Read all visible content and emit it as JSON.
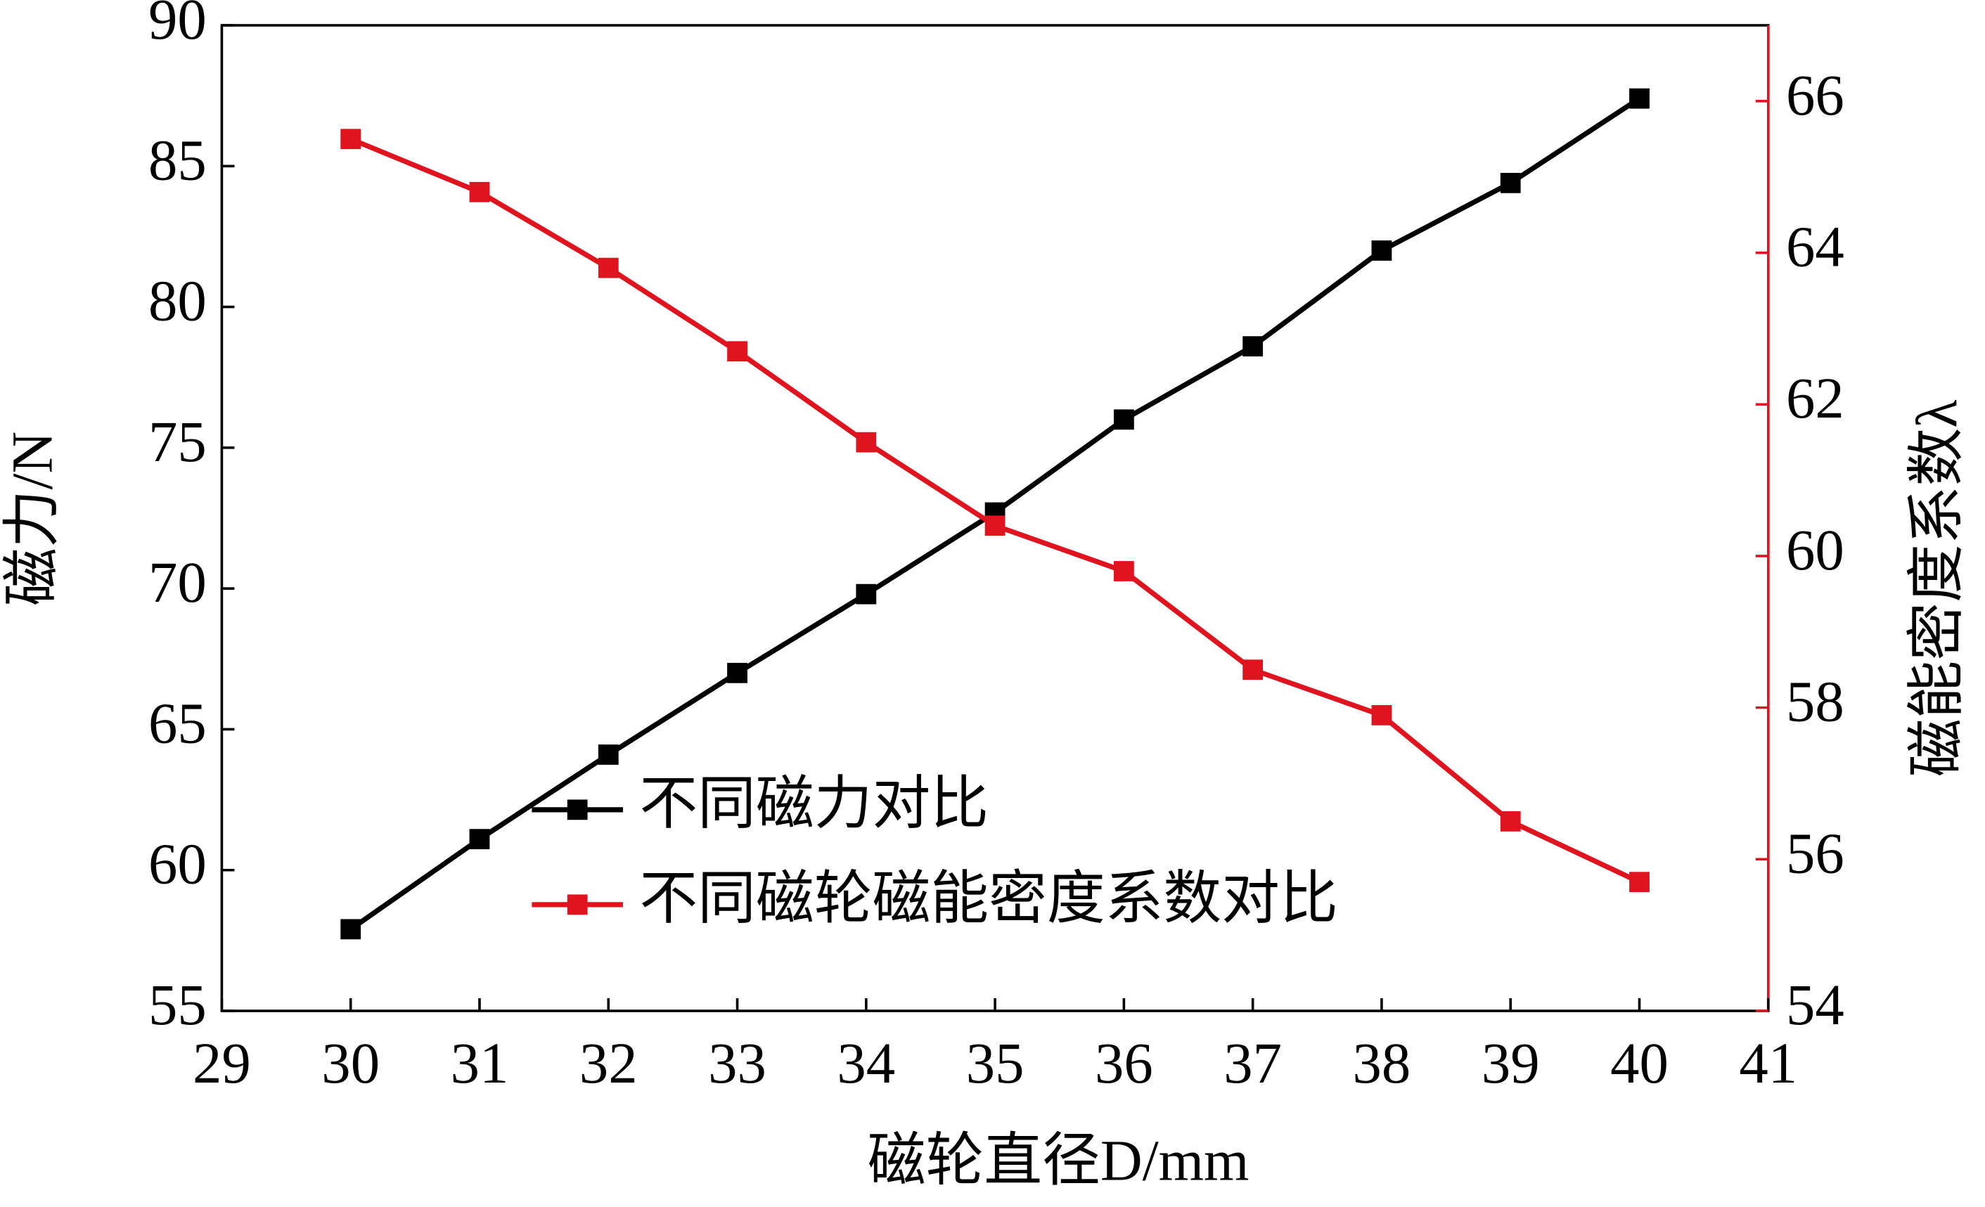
{
  "chart_data": {
    "type": "line",
    "xlabel": "磁轮直径D/mm",
    "ylabel": "磁力/N",
    "y2label": "磁能密度系数λ",
    "x": [
      30,
      31,
      32,
      33,
      34,
      35,
      36,
      37,
      38,
      39,
      40
    ],
    "xlim": [
      29,
      41
    ],
    "xticks": [
      29,
      30,
      31,
      32,
      33,
      34,
      35,
      36,
      37,
      38,
      39,
      40,
      41
    ],
    "ylim": [
      55,
      90
    ],
    "yticks": [
      55,
      60,
      65,
      70,
      75,
      80,
      85,
      90
    ],
    "y2lim": [
      54,
      67
    ],
    "y2ticks": [
      54,
      56,
      58,
      60,
      62,
      64,
      66
    ],
    "y2color": "#e0141e",
    "series": [
      {
        "name": "不同磁力对比",
        "color": "#000000",
        "values": [
          57.9,
          61.1,
          64.1,
          67.0,
          69.8,
          72.7,
          76.0,
          78.6,
          82.0,
          84.4,
          87.4
        ]
      },
      {
        "name": "不同磁轮磁能密度系数对比",
        "color": "#e0141e",
        "axis": "y2",
        "values": [
          65.5,
          64.8,
          63.8,
          62.7,
          61.5,
          60.4,
          59.8,
          58.5,
          57.9,
          56.5,
          55.7
        ]
      }
    ]
  }
}
